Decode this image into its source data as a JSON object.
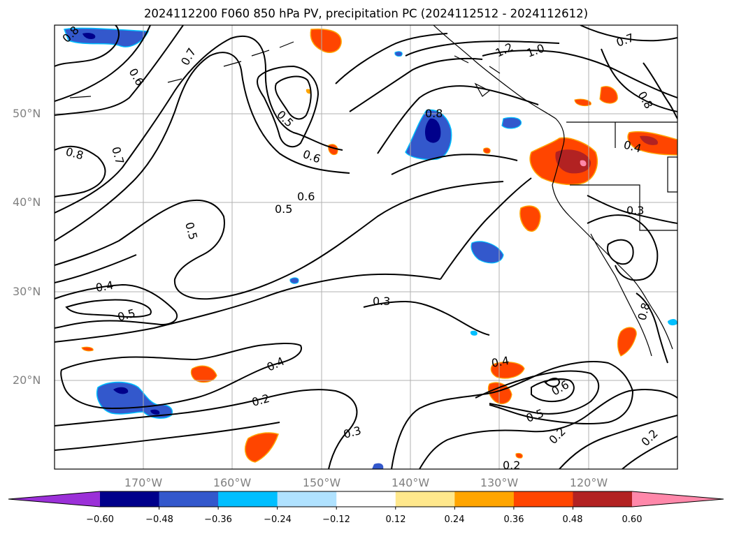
{
  "title": "2024112200 F060 850 hPa PV, precipitation PC (2024112512 - 2024112612)",
  "map": {
    "region": "North-east Pacific and western North America",
    "lat_labels": [
      "50°N",
      "40°N",
      "30°N",
      "20°N"
    ],
    "lon_labels": [
      "170°W",
      "160°W",
      "150°W",
      "140°W",
      "130°W",
      "120°W"
    ],
    "contour_labels": [
      "0.8",
      "0.6",
      "0.7",
      "0.5",
      "0.6",
      "0.6",
      "0.5",
      "0.8",
      "0.7",
      "0.5",
      "0.4",
      "0.5",
      "0.3",
      "0.4",
      "0.2",
      "0.3",
      "0.4",
      "0.6",
      "0.5",
      "0.2",
      "0.2",
      "0.2",
      "1.2",
      "1.0",
      "0.7",
      "0.8",
      "0.4",
      "0.3",
      "0.8",
      "0.8"
    ],
    "colors": {
      "contour": "#000000",
      "grid": "#b0b0b0",
      "coast": "#000000"
    }
  },
  "colorbar": {
    "tick_labels": [
      "−0.60",
      "−0.48",
      "−0.36",
      "−0.24",
      "−0.12",
      "0.12",
      "0.24",
      "0.36",
      "0.48",
      "0.60"
    ],
    "bins": [
      {
        "color": "#9b30d8"
      },
      {
        "color": "#00008b"
      },
      {
        "color": "#3358cc"
      },
      {
        "color": "#00bfff"
      },
      {
        "color": "#b0e2ff"
      },
      {
        "color": "#ffffff"
      },
      {
        "color": "#ffe88c"
      },
      {
        "color": "#ffa500"
      },
      {
        "color": "#ff4500"
      },
      {
        "color": "#b22222"
      },
      {
        "color": "#ff88aa"
      }
    ]
  }
}
